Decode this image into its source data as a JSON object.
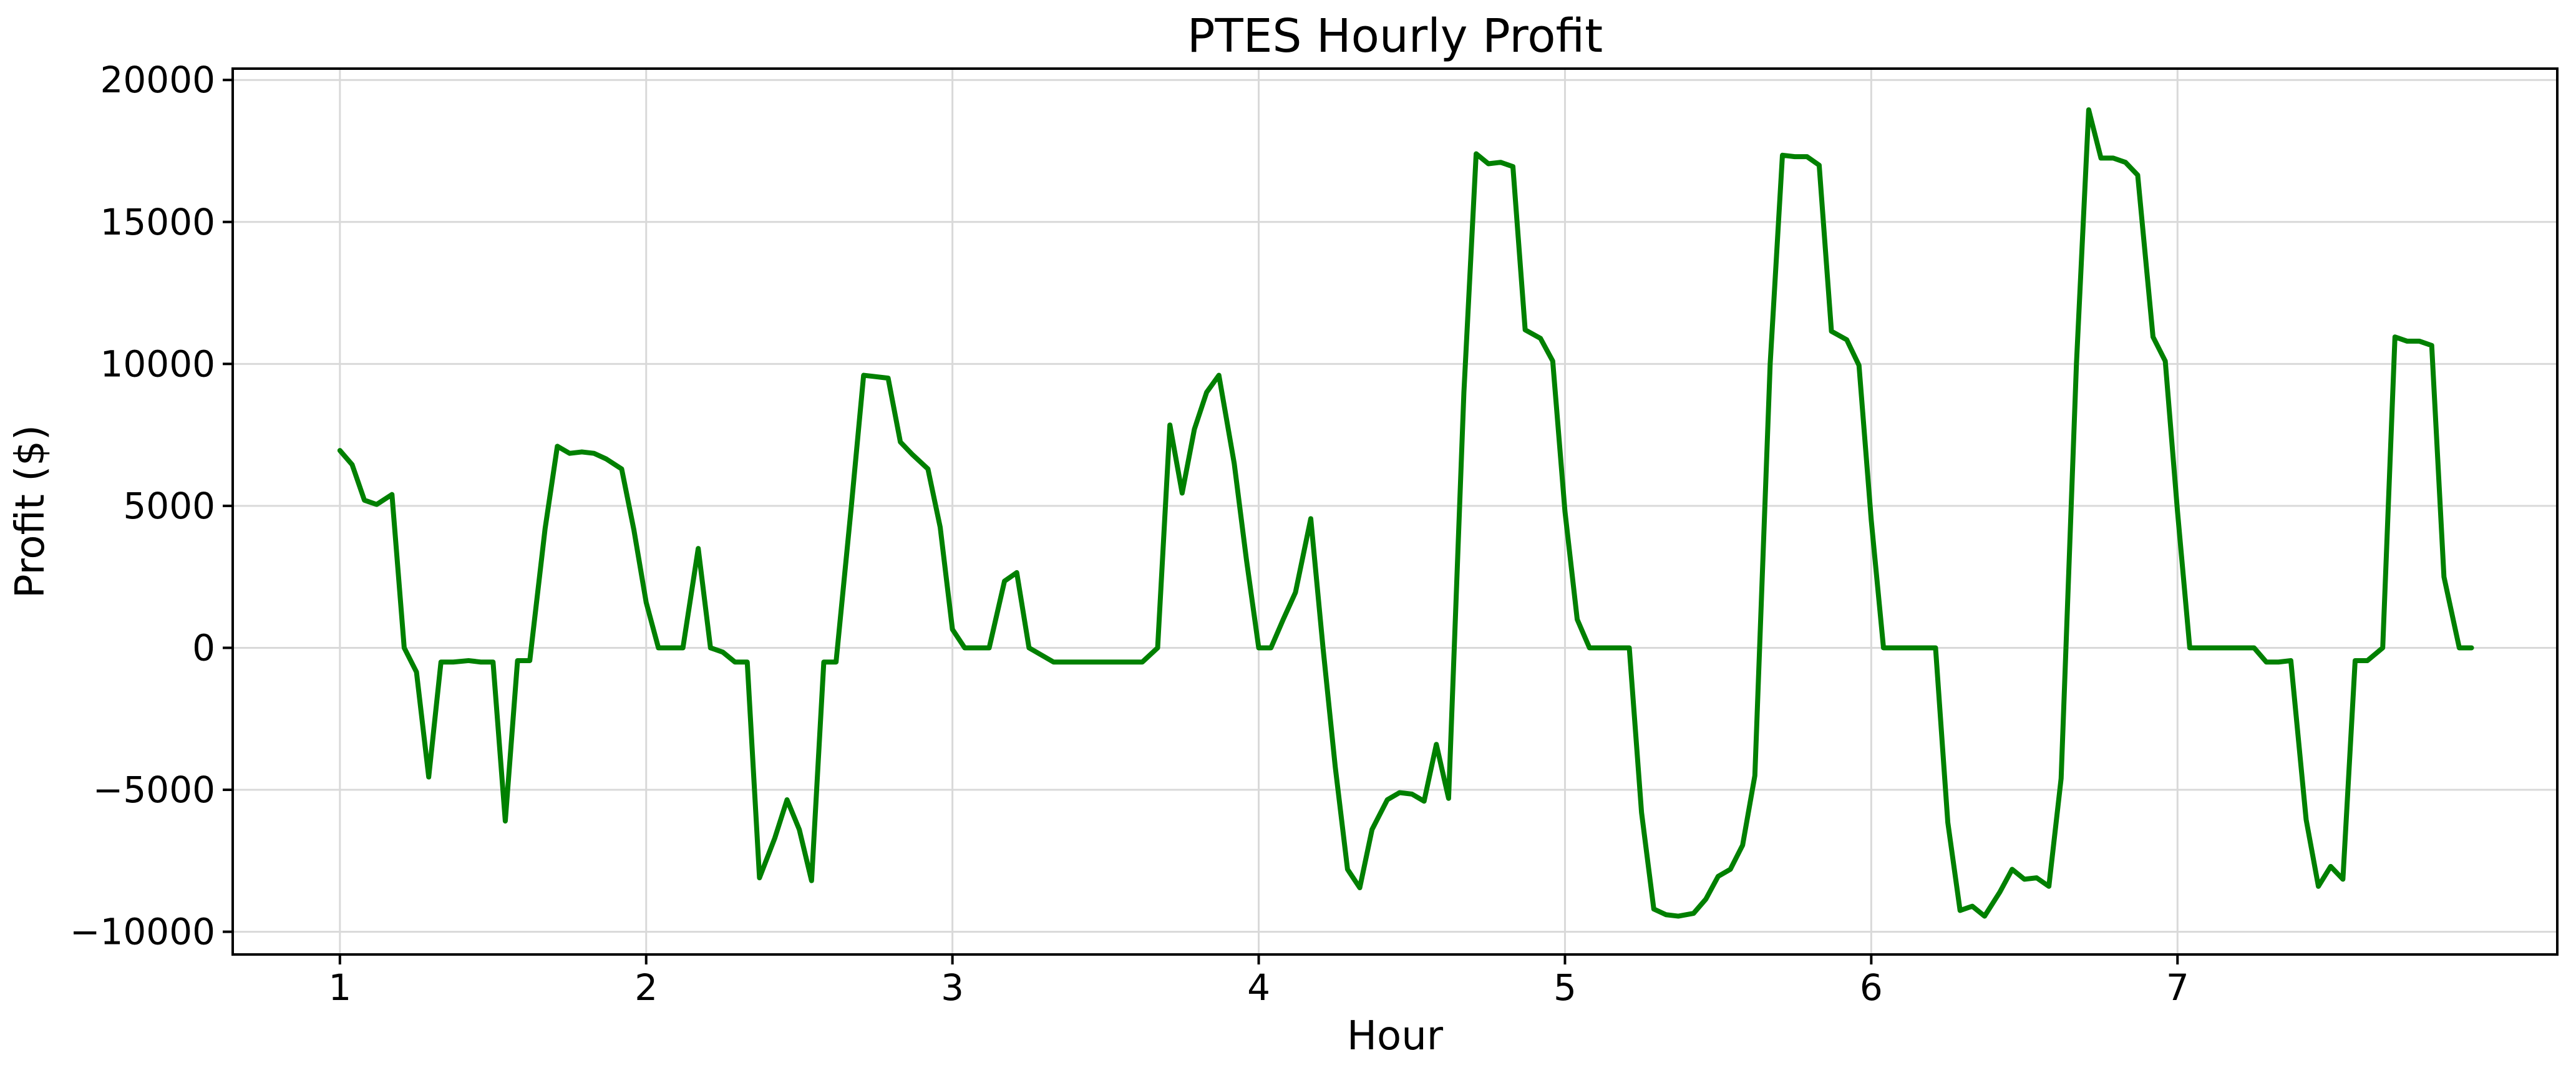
{
  "chart_data": {
    "type": "line",
    "title": "PTES Hourly Profit",
    "xlabel": "Hour",
    "ylabel": "Profit ($)",
    "xlim": [
      0.65,
      8.24
    ],
    "ylim": [
      -10800,
      20400
    ],
    "grid": true,
    "x_ticks": [
      1,
      2,
      3,
      4,
      5,
      6,
      7
    ],
    "x_tick_labels": [
      "1",
      "2",
      "3",
      "4",
      "5",
      "6",
      "7"
    ],
    "y_ticks": [
      -10000,
      -5000,
      0,
      5000,
      10000,
      15000,
      20000
    ],
    "y_tick_labels": [
      "−10000",
      "−5000",
      "0",
      "5000",
      "10000",
      "15000",
      "20000"
    ],
    "colors": {
      "line": "#008000"
    },
    "series": [
      {
        "x": [
          1.0,
          1.04,
          1.08,
          1.12,
          1.17,
          1.21,
          1.25,
          1.29,
          1.33,
          1.37,
          1.42,
          1.46,
          1.5,
          1.54,
          1.58,
          1.62,
          1.67,
          1.71,
          1.75,
          1.79,
          1.83,
          1.87,
          1.92,
          1.96,
          2.0,
          2.04,
          2.08,
          2.12,
          2.17,
          2.21,
          2.25,
          2.29,
          2.33,
          2.37,
          2.42,
          2.46,
          2.5,
          2.54,
          2.58,
          2.62,
          2.67,
          2.71,
          2.75,
          2.79,
          2.83,
          2.87,
          2.92,
          2.96,
          3.0,
          3.04,
          3.08,
          3.12,
          3.17,
          3.21,
          3.25,
          3.29,
          3.33,
          3.37,
          3.42,
          3.46,
          3.5,
          3.54,
          3.58,
          3.62,
          3.67,
          3.71,
          3.75,
          3.79,
          3.83,
          3.87,
          3.92,
          3.96,
          4.0,
          4.04,
          4.08,
          4.12,
          4.17,
          4.21,
          4.25,
          4.29,
          4.33,
          4.37,
          4.42,
          4.46,
          4.5,
          4.54,
          4.58,
          4.62,
          4.67,
          4.71,
          4.75,
          4.79,
          4.83,
          4.87,
          4.92,
          4.96,
          5.0,
          5.04,
          5.08,
          5.12,
          5.17,
          5.21,
          5.25,
          5.29,
          5.33,
          5.37,
          5.42,
          5.46,
          5.5,
          5.54,
          5.58,
          5.62,
          5.67,
          5.71,
          5.75,
          5.79,
          5.83,
          5.87,
          5.92,
          5.96,
          6.0,
          6.04,
          6.08,
          6.12,
          6.17,
          6.21,
          6.25,
          6.29,
          6.33,
          6.37,
          6.42,
          6.46,
          6.5,
          6.54,
          6.58,
          6.62,
          6.67,
          6.71,
          6.75,
          6.79,
          6.83,
          6.87,
          6.92,
          6.96,
          7.0,
          7.04,
          7.08,
          7.12,
          7.17,
          7.21,
          7.25,
          7.29,
          7.33,
          7.37,
          7.42,
          7.46,
          7.5,
          7.54,
          7.58,
          7.62,
          7.67,
          7.71,
          7.75,
          7.79,
          7.83,
          7.87,
          7.92,
          7.96
        ],
        "values": [
          6950,
          6450,
          5200,
          5050,
          5400,
          0,
          -850,
          -4550,
          -500,
          -500,
          -450,
          -500,
          -500,
          -6100,
          -450,
          -450,
          4200,
          7100,
          6850,
          6900,
          6850,
          6650,
          6300,
          4150,
          1600,
          0,
          0,
          0,
          3500,
          0,
          -150,
          -500,
          -500,
          -8100,
          -6700,
          -5350,
          -6400,
          -8200,
          -500,
          -500,
          5000,
          9600,
          9550,
          9500,
          7250,
          6800,
          6300,
          4250,
          650,
          0,
          0,
          0,
          2350,
          2650,
          0,
          -250,
          -500,
          -500,
          -500,
          -500,
          -500,
          -500,
          -500,
          -500,
          0,
          7850,
          5450,
          7700,
          9000,
          9600,
          6500,
          3100,
          0,
          0,
          1000,
          1950,
          4550,
          0,
          -4200,
          -7800,
          -8450,
          -6400,
          -5350,
          -5100,
          -5150,
          -5400,
          -3400,
          -5300,
          9000,
          17400,
          17050,
          17100,
          16950,
          11200,
          10900,
          10100,
          4800,
          1000,
          0,
          0,
          0,
          0,
          -5800,
          -9200,
          -9400,
          -9450,
          -9350,
          -8850,
          -8050,
          -7800,
          -6950,
          -4500,
          10000,
          17350,
          17300,
          17300,
          17000,
          11150,
          10850,
          9950,
          4500,
          0,
          0,
          0,
          0,
          0,
          -6150,
          -9250,
          -9100,
          -9450,
          -8600,
          -7800,
          -8150,
          -8100,
          -8400,
          -4600,
          10000,
          18950,
          17250,
          17250,
          17100,
          16650,
          10950,
          10100,
          4800,
          0,
          0,
          0,
          0,
          0,
          0,
          -500,
          -500,
          -450,
          -6050,
          -8400,
          -7700,
          -8150,
          -450,
          -450,
          0,
          10950,
          10800,
          10800,
          10650,
          2500,
          0,
          0
        ]
      }
    ]
  }
}
